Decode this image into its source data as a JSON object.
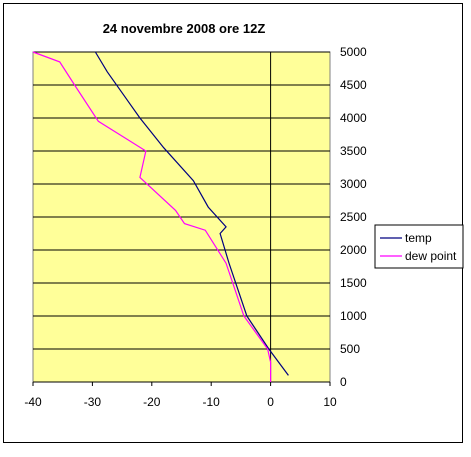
{
  "chart_data": {
    "type": "line",
    "title": "24 novembre 2008 ore 12Z",
    "xlabel": "",
    "ylabel": "",
    "xlim": [
      -40,
      10
    ],
    "ylim": [
      0,
      5000
    ],
    "x_ticks": [
      -40,
      -30,
      -20,
      -10,
      0,
      10
    ],
    "y_ticks": [
      0,
      500,
      1000,
      1500,
      2000,
      2500,
      3000,
      3500,
      4000,
      4500,
      5000
    ],
    "y_axis_side": "right",
    "grid": "horizontal",
    "legend_position": "right",
    "series": [
      {
        "name": "temp",
        "color": "#000080",
        "points": [
          {
            "x": 3,
            "y": 100
          },
          {
            "x": -0.3,
            "y": 500
          },
          {
            "x": -4,
            "y": 1000
          },
          {
            "x": -7,
            "y": 1800
          },
          {
            "x": -8.5,
            "y": 2250
          },
          {
            "x": -7.5,
            "y": 2350
          },
          {
            "x": -10.5,
            "y": 2650
          },
          {
            "x": -13,
            "y": 3050
          },
          {
            "x": -18,
            "y": 3550
          },
          {
            "x": -22,
            "y": 4000
          },
          {
            "x": -27.5,
            "y": 4700
          },
          {
            "x": -29.5,
            "y": 5000
          }
        ]
      },
      {
        "name": "dew point",
        "color": "#ff00ff",
        "points": [
          {
            "x": 0,
            "y": 0
          },
          {
            "x": 0,
            "y": 300
          },
          {
            "x": -0.5,
            "y": 500
          },
          {
            "x": -4.5,
            "y": 1000
          },
          {
            "x": -6,
            "y": 1400
          },
          {
            "x": -7.5,
            "y": 1800
          },
          {
            "x": -11,
            "y": 2300
          },
          {
            "x": -14.5,
            "y": 2400
          },
          {
            "x": -16,
            "y": 2600
          },
          {
            "x": -22,
            "y": 3100
          },
          {
            "x": -21,
            "y": 3500
          },
          {
            "x": -29,
            "y": 3950
          },
          {
            "x": -33,
            "y": 4500
          },
          {
            "x": -35.5,
            "y": 4850
          },
          {
            "x": -40,
            "y": 5000
          }
        ]
      }
    ],
    "plot_background": "#ffff99",
    "axis_color": "#000000"
  }
}
